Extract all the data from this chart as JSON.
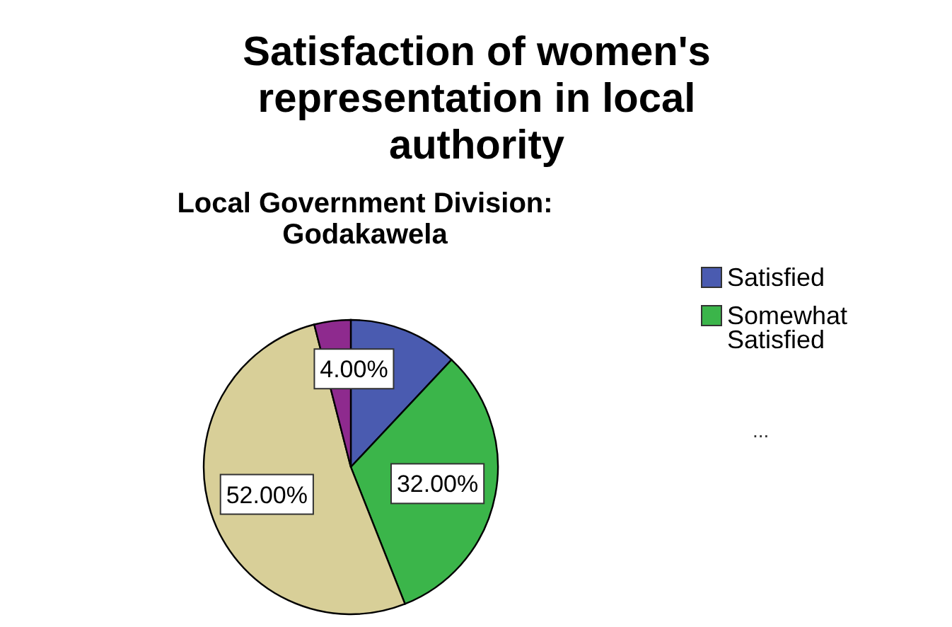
{
  "chart_data": {
    "type": "pie",
    "title": "Satisfaction of women's representation in local authority",
    "subtitle": "Local Government Division: Godakawela",
    "categories": [
      "Satisfied",
      "Somewhat Satisfied",
      null,
      null
    ],
    "values": [
      12,
      32,
      52,
      4
    ],
    "colors": [
      "#4a5bb0",
      "#3bb54a",
      "#d8cf98",
      "#8e2a8e"
    ],
    "value_labels": [
      null,
      "32.00%",
      "52.00%",
      "4.00%"
    ],
    "legend": "right",
    "annotations": [
      "..."
    ]
  }
}
